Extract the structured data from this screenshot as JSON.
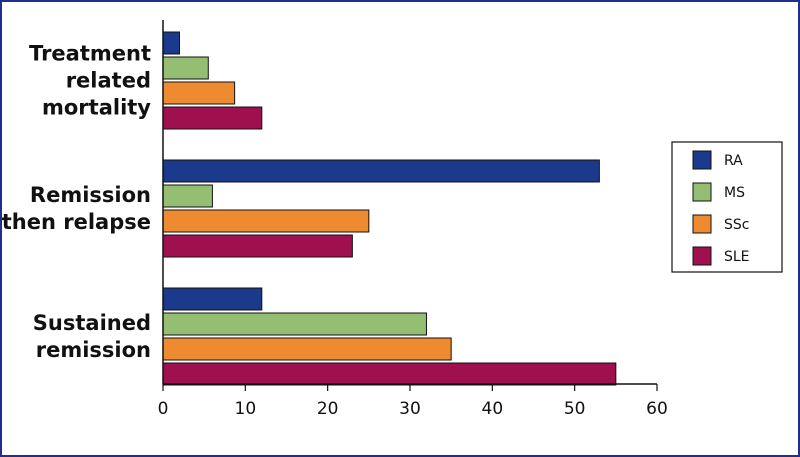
{
  "chart_data": {
    "type": "bar",
    "orientation": "horizontal",
    "categories": [
      [
        "Treatment",
        "related",
        "mortality"
      ],
      [
        "Remission",
        "then relapse"
      ],
      [
        "Sustained",
        "remission"
      ]
    ],
    "series": [
      {
        "name": "RA",
        "color": "#1c3a8c",
        "values": [
          2,
          53,
          12
        ]
      },
      {
        "name": "MS",
        "color": "#94bf73",
        "values": [
          5.5,
          6,
          32
        ]
      },
      {
        "name": "SSc",
        "color": "#ee8a2f",
        "values": [
          8.7,
          25,
          35
        ]
      },
      {
        "name": "SLE",
        "color": "#a0104f",
        "values": [
          12,
          23,
          55
        ]
      }
    ],
    "xlim": [
      0,
      60
    ],
    "xticks": [
      0,
      10,
      20,
      30,
      40,
      50,
      60
    ],
    "grid": false,
    "legend_position": "right"
  }
}
